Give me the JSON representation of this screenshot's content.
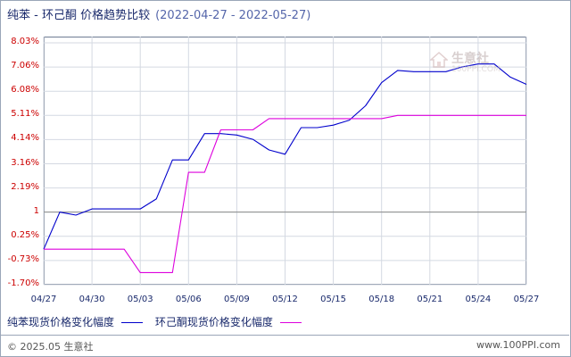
{
  "title": "纯苯 - 环己酮 价格趋势比较",
  "subtitle": "(2022-04-27 - 2022-05-27)",
  "watermark": {
    "text": "生意社",
    "url": "100PPI.COM"
  },
  "footer": {
    "copyright": "© 2025.05 生意社",
    "site": "www.100PPI.com"
  },
  "chart_data": {
    "type": "line",
    "x": [
      "04/27",
      "04/28",
      "04/29",
      "04/30",
      "05/01",
      "05/02",
      "05/03",
      "05/04",
      "05/05",
      "05/06",
      "05/07",
      "05/08",
      "05/09",
      "05/10",
      "05/11",
      "05/12",
      "05/13",
      "05/14",
      "05/15",
      "05/16",
      "05/17",
      "05/18",
      "05/19",
      "05/20",
      "05/21",
      "05/22",
      "05/23",
      "05/24",
      "05/25",
      "05/26",
      "05/27"
    ],
    "x_tick_labels": [
      "04/27",
      "04/30",
      "05/03",
      "05/06",
      "05/09",
      "05/12",
      "05/15",
      "05/18",
      "05/21",
      "05/24",
      "05/27"
    ],
    "y_tick_labels": [
      "8.03%",
      "7.06%",
      "6.08%",
      "5.11%",
      "4.14%",
      "3.16%",
      "2.19%",
      "1",
      "0.25%",
      "-0.73%",
      "-1.70%"
    ],
    "ylim": [
      -1.7,
      8.03
    ],
    "reference_line": 1.22,
    "grid": true,
    "series": [
      {
        "name": "纯苯现货价格变化幅度",
        "color": "#0000cc",
        "values": [
          -0.27,
          1.22,
          1.1,
          1.35,
          1.35,
          1.35,
          1.35,
          1.75,
          3.32,
          3.32,
          4.38,
          4.38,
          4.32,
          4.15,
          3.72,
          3.55,
          4.62,
          4.62,
          4.72,
          4.92,
          5.5,
          6.43,
          6.92,
          6.87,
          6.87,
          6.87,
          7.06,
          7.18,
          7.18,
          6.65,
          6.36
        ]
      },
      {
        "name": "环己酮现货价格变化幅度",
        "color": "#dd00dd",
        "values": [
          -0.27,
          -0.27,
          -0.27,
          -0.27,
          -0.27,
          -0.27,
          -1.21,
          -1.21,
          -1.21,
          2.82,
          2.82,
          4.53,
          4.53,
          4.53,
          4.98,
          4.98,
          4.98,
          4.98,
          4.98,
          4.98,
          4.98,
          4.98,
          5.11,
          5.11,
          5.11,
          5.11,
          5.11,
          5.11,
          5.11,
          5.11,
          5.11
        ]
      }
    ]
  }
}
